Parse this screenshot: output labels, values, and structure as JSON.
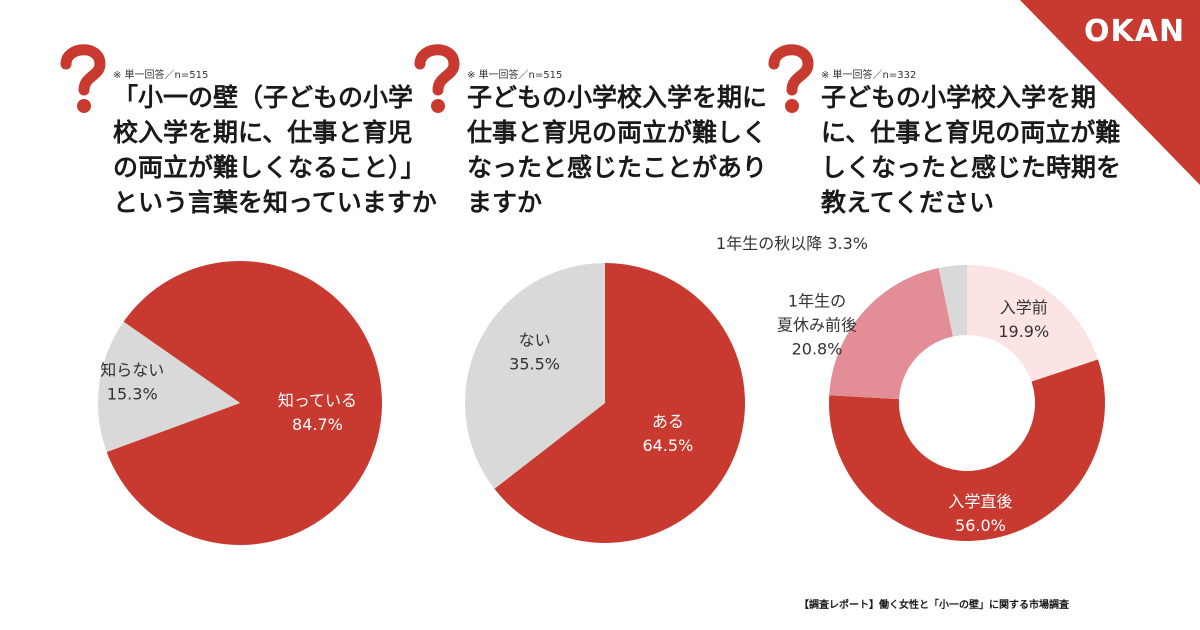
{
  "brand": {
    "logo": "OKAN",
    "accent": "#C83A30"
  },
  "questions": [
    {
      "note": "※ 単一回答／n=515",
      "text": "「小一の壁（子どもの小学\n校入学を期に、仕事と育児\nの両立が難しくなること）」\nという言葉を知っていますか"
    },
    {
      "note": "※ 単一回答／n=515",
      "text": "子どもの小学校入学を期に\n仕事と育児の両立が難しく\nなったと感じたことがあり\nますか"
    },
    {
      "note": "※ 単一回答／n=332",
      "text": "子どもの小学校入学を期\nに、仕事と育児の両立が難\nしくなったと感じた時期を\n教えてください"
    }
  ],
  "chart_data": [
    {
      "type": "pie",
      "labels": [
        "知っている",
        "知らない"
      ],
      "values": [
        84.7,
        15.3
      ],
      "value_labels": [
        "84.7%",
        "15.3%"
      ],
      "colors": [
        "#C83A30",
        "#D9D9D9"
      ]
    },
    {
      "type": "pie",
      "labels": [
        "ある",
        "ない"
      ],
      "values": [
        64.5,
        35.5
      ],
      "value_labels": [
        "64.5%",
        "35.5%"
      ],
      "colors": [
        "#C83A30",
        "#D9D9D9"
      ]
    },
    {
      "type": "pie",
      "donut": true,
      "labels": [
        "入学前",
        "入学直後",
        "1年生の夏休み前後",
        "1年生の秋以降"
      ],
      "label_lines": [
        [
          "入学前"
        ],
        [
          "入学直後"
        ],
        [
          "1年生の",
          "夏休み前後"
        ],
        [
          "1年生の秋以降"
        ]
      ],
      "values": [
        19.9,
        56.0,
        20.8,
        3.3
      ],
      "value_labels": [
        "19.9%",
        "56.0%",
        "20.8%",
        "3.3%"
      ],
      "colors": [
        "#FCE4E4",
        "#C83A30",
        "#E38E97",
        "#D9D9D9"
      ]
    }
  ],
  "footer": "【調査レポート】働く女性と「小一の壁」に関する市場調査"
}
